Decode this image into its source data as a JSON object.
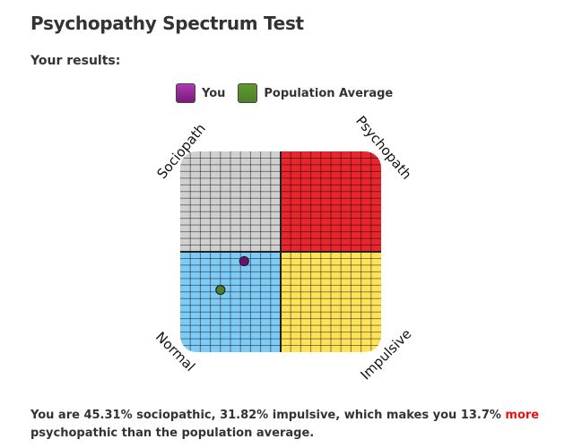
{
  "header": {
    "title": "Psychopathy Spectrum Test",
    "subtitle": "Your results:"
  },
  "legend": [
    {
      "label": "You",
      "color": "#7a1a7a",
      "swatch": "#b03ab0"
    },
    {
      "label": "Population Average",
      "color": "#4f7f2a",
      "swatch": "#5f9a2f"
    }
  ],
  "chart_data": {
    "type": "scatter",
    "xlabel": "impulsive",
    "ylabel": "sociopathic",
    "xlim": [
      0,
      100
    ],
    "ylim": [
      0,
      100
    ],
    "grid": true,
    "quadrants": [
      {
        "label": "Sociopath",
        "position": "top-left",
        "color": "#d0d0d0"
      },
      {
        "label": "Psychopath",
        "position": "top-right",
        "color": "#e8262d"
      },
      {
        "label": "Normal",
        "position": "bottom-left",
        "color": "#7ecbf5"
      },
      {
        "label": "Impulsive",
        "position": "bottom-right",
        "color": "#fde25a"
      }
    ],
    "points": [
      {
        "series": "You",
        "impulsive": 31.82,
        "sociopathic": 45.31,
        "color": "#6e1070"
      },
      {
        "series": "Population Average",
        "impulsive": 20,
        "sociopathic": 31,
        "color": "#4f7f2a"
      }
    ]
  },
  "summary": {
    "part1": "You are 45.31% sociopathic, 31.82% impulsive, which makes you 13.7% ",
    "emphasis": "more",
    "part2": " psychopathic than the population average."
  }
}
